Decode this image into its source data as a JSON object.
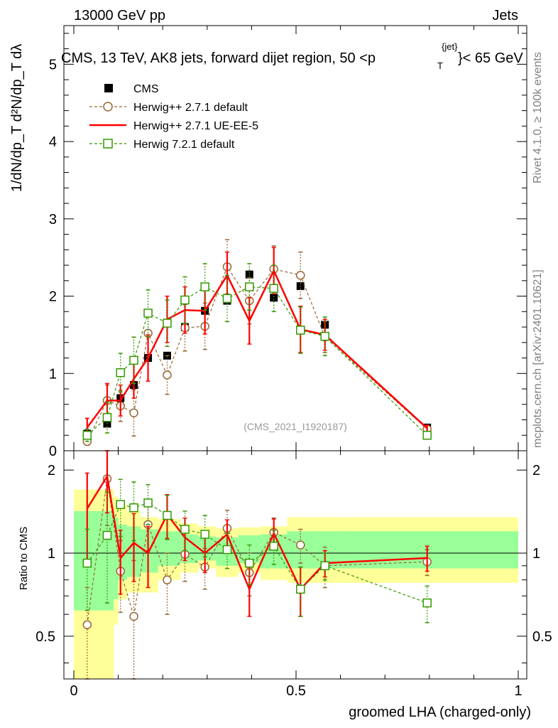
{
  "header": {
    "left": "13000 GeV pp",
    "right": "Jets"
  },
  "side": {
    "rivet": "Rivet 4.1.0, ≥ 100k events",
    "mcplots": "mcplots.cern.ch [arXiv:2401.10621]"
  },
  "chart_data": {
    "type": "line",
    "title": "CMS, 13 TeV, AK8 jets, forward dijet region, 50 <p",
    "title_sub": "T",
    "title_sup": "{jet}",
    "title_end": "}< 65 GeV",
    "xlabel": "groomed LHA (charged-only)",
    "ylabel": "1/dN/dp_T d²N/dp_T dλ",
    "ratio_ylabel": "Ratio to CMS",
    "watermark": "(CMS_2021_I1920187)",
    "xlim": [
      0,
      1
    ],
    "ylim": [
      0,
      5.5
    ],
    "ratio_ylim": [
      0.35,
      2.35
    ],
    "x_ticks": [
      "0",
      "0.5",
      "1"
    ],
    "y_ticks": [
      "0",
      "1",
      "2",
      "3",
      "4",
      "5"
    ],
    "ratio_ticks": [
      "0.5",
      "1",
      "2"
    ],
    "legend": [
      "CMS",
      "Herwig++ 2.7.1 default",
      "Herwig++ 2.7.1 UE-EE-5",
      "Herwig 7.2.1 default"
    ],
    "bins": [
      0,
      0.09,
      0.1,
      0.12,
      0.15,
      0.19,
      0.24,
      0.28,
      0.32,
      0.37,
      0.42,
      0.48,
      0.54,
      0.6,
      1.0
    ],
    "band_outer": [
      [
        0.35,
        1.7
      ],
      [
        0.55,
        1.6
      ],
      [
        0.68,
        1.5
      ],
      [
        0.72,
        1.42
      ],
      [
        0.72,
        1.35
      ],
      [
        0.8,
        1.33
      ],
      [
        0.85,
        1.28
      ],
      [
        0.88,
        1.25
      ],
      [
        0.82,
        1.23
      ],
      [
        0.85,
        1.24
      ],
      [
        0.8,
        1.25
      ],
      [
        0.78,
        1.35
      ],
      [
        0.78,
        1.35
      ]
    ],
    "band_inner": [
      [
        0.62,
        1.42
      ],
      [
        0.68,
        1.35
      ],
      [
        0.8,
        1.27
      ],
      [
        0.82,
        1.25
      ],
      [
        0.85,
        1.22
      ],
      [
        0.9,
        1.2
      ],
      [
        0.92,
        1.17
      ],
      [
        0.94,
        1.15
      ],
      [
        0.9,
        1.14
      ],
      [
        0.92,
        1.16
      ],
      [
        0.88,
        1.17
      ],
      [
        0.88,
        1.2
      ],
      [
        0.88,
        1.2
      ]
    ],
    "series": [
      {
        "name": "CMS",
        "color": "#000000",
        "style": "square-filled",
        "x": [
          0.03,
          0.075,
          0.105,
          0.135,
          0.167,
          0.21,
          0.25,
          0.295,
          0.345,
          0.395,
          0.45,
          0.51,
          0.565,
          0.795
        ],
        "y": [
          0.22,
          0.35,
          0.68,
          0.85,
          1.2,
          1.23,
          1.6,
          1.81,
          1.94,
          2.28,
          1.98,
          2.13,
          1.63,
          0.3
        ]
      },
      {
        "name": "Herwig++ 2.7.1 default",
        "color": "#996633",
        "style": "circle-dashed",
        "x": [
          0.03,
          0.075,
          0.105,
          0.135,
          0.167,
          0.21,
          0.25,
          0.295,
          0.345,
          0.395,
          0.45,
          0.51,
          0.565,
          0.795
        ],
        "y": [
          0.12,
          0.65,
          0.58,
          0.49,
          1.52,
          0.98,
          1.59,
          1.61,
          2.38,
          1.94,
          2.35,
          2.27,
          1.47,
          0.28
        ],
        "err": [
          0.05,
          0.2,
          0.2,
          0.3,
          0.3,
          0.25,
          0.3,
          0.3,
          0.35,
          0.3,
          0.3,
          0.3,
          0.2,
          0.04
        ],
        "ratio": [
          0.55,
          1.86,
          0.86,
          0.59,
          1.27,
          0.8,
          0.99,
          0.89,
          1.23,
          0.85,
          1.19,
          1.07,
          0.9,
          0.93
        ],
        "ratio_err": [
          0.2,
          0.6,
          0.25,
          0.35,
          0.25,
          0.2,
          0.2,
          0.15,
          0.2,
          0.15,
          0.15,
          0.15,
          0.15,
          0.1
        ]
      },
      {
        "name": "Herwig++ 2.7.1 UE-EE-5",
        "color": "#ff0000",
        "style": "line-solid",
        "x": [
          0.03,
          0.075,
          0.105,
          0.135,
          0.167,
          0.21,
          0.25,
          0.295,
          0.345,
          0.395,
          0.45,
          0.51,
          0.565,
          0.795
        ],
        "y": [
          0.3,
          0.65,
          0.65,
          0.93,
          1.2,
          1.7,
          1.82,
          1.81,
          2.27,
          1.68,
          2.33,
          1.57,
          1.5,
          0.29
        ],
        "err": [
          0.12,
          0.22,
          0.2,
          0.25,
          0.3,
          0.3,
          0.3,
          0.3,
          0.3,
          0.3,
          0.3,
          0.3,
          0.2,
          0.04
        ],
        "ratio": [
          1.45,
          1.9,
          0.96,
          1.09,
          1.0,
          1.38,
          1.14,
          1.0,
          1.17,
          0.74,
          1.18,
          0.74,
          0.92,
          0.96
        ],
        "ratio_err": [
          0.5,
          0.5,
          0.25,
          0.3,
          0.25,
          0.25,
          0.2,
          0.15,
          0.15,
          0.15,
          0.15,
          0.15,
          0.1,
          0.1
        ]
      },
      {
        "name": "Herwig 7.2.1 default",
        "color": "#339900",
        "style": "square-dashed",
        "x": [
          0.03,
          0.075,
          0.105,
          0.135,
          0.167,
          0.21,
          0.25,
          0.295,
          0.345,
          0.395,
          0.45,
          0.51,
          0.565,
          0.795
        ],
        "y": [
          0.2,
          0.43,
          1.01,
          1.17,
          1.78,
          1.65,
          1.95,
          2.12,
          1.97,
          2.12,
          2.1,
          1.56,
          1.48,
          0.2
        ],
        "err": [
          0.08,
          0.2,
          0.25,
          0.3,
          0.3,
          0.3,
          0.3,
          0.3,
          0.3,
          0.3,
          0.3,
          0.3,
          0.25,
          0.04
        ],
        "ratio": [
          0.92,
          1.16,
          1.5,
          1.46,
          1.52,
          1.37,
          1.22,
          1.17,
          1.03,
          0.92,
          1.06,
          0.74,
          0.9,
          0.66
        ],
        "ratio_err": [
          0.3,
          0.5,
          0.35,
          0.35,
          0.25,
          0.25,
          0.2,
          0.2,
          0.15,
          0.15,
          0.15,
          0.15,
          0.1,
          0.1
        ]
      }
    ]
  }
}
